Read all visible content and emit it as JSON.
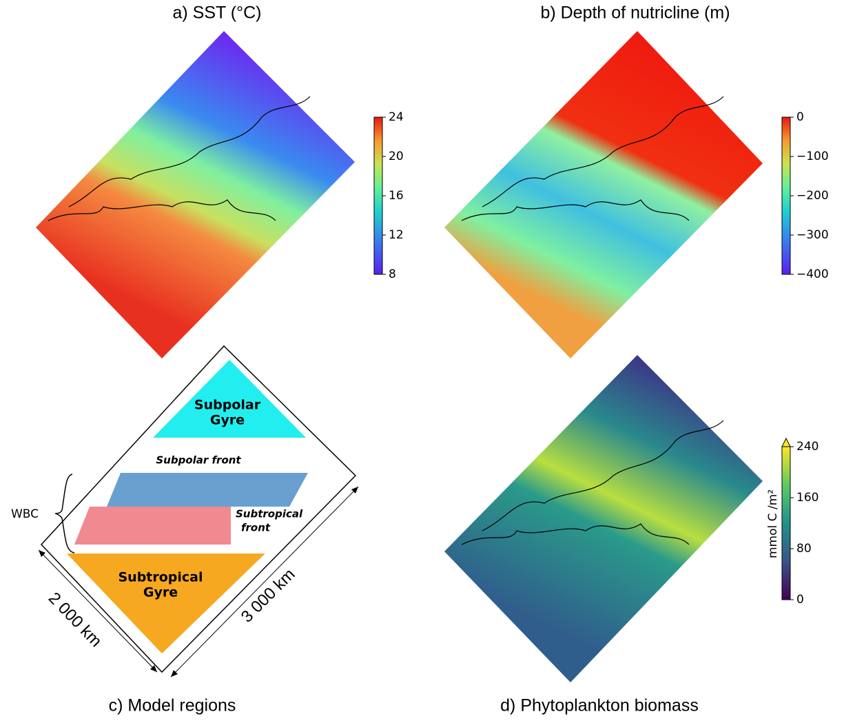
{
  "panels": [
    {
      "title": "a) SST (°C)",
      "colorbar": {
        "lim": [
          8,
          24
        ],
        "ticks": [
          8,
          12,
          16,
          20,
          24
        ]
      }
    },
    {
      "title": "b) Depth of nutricline (m)",
      "colorbar": {
        "lim": [
          -400,
          0
        ],
        "ticks": [
          {
            "value": -400,
            "label": "−400"
          },
          {
            "value": -300,
            "label": "−300"
          },
          {
            "value": -200,
            "label": "−200"
          },
          {
            "value": -100,
            "label": "−100"
          },
          0
        ]
      }
    },
    {
      "title": "c) Model regions",
      "regions": {
        "subpolar_gyre": [
          "Subpolar",
          "Gyre"
        ],
        "subpolar_front": "Subpolar front",
        "subtropical_front": [
          "Subtropical",
          "front"
        ],
        "subtropical_gyre": [
          "Subtropical",
          "Gyre"
        ],
        "wbc": "WBC",
        "width": "2 000 km",
        "length": "3 000 km"
      }
    },
    {
      "title": "d) Phytoplankton biomass",
      "colorbar": {
        "lim": [
          0,
          240
        ],
        "ticks": [
          0,
          80,
          160,
          240
        ],
        "label": "mmol C /m²",
        "extend": "max"
      }
    }
  ]
}
